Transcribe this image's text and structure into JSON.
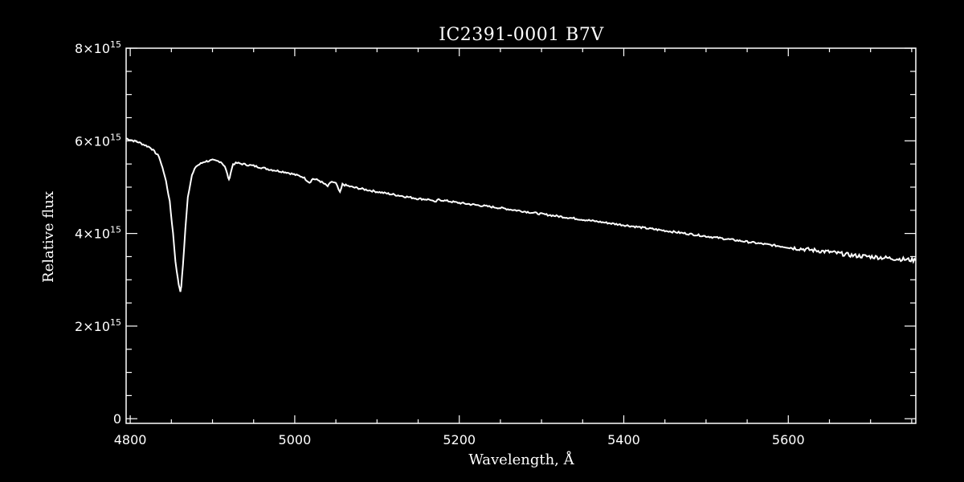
{
  "chart_data": {
    "type": "line",
    "title": "IC2391-0001   B7V",
    "xlabel": "Wavelength, Å",
    "ylabel": "Relative flux",
    "xlim": [
      4795,
      5755
    ],
    "ylim": [
      -100000000000000.0,
      8000000000000000.0
    ],
    "x_ticks": [
      4800,
      5000,
      5200,
      5400,
      5600
    ],
    "x_tick_labels": [
      "4800",
      "5000",
      "5200",
      "5400",
      "5600"
    ],
    "y_ticks": [
      0,
      2000000000000000.0,
      4000000000000000.0,
      6000000000000000.0,
      8000000000000000.0
    ],
    "y_tick_labels": [
      {
        "mantissa": "0",
        "exp": ""
      },
      {
        "mantissa": "2×10",
        "exp": "15"
      },
      {
        "mantissa": "4×10",
        "exp": "15"
      },
      {
        "mantissa": "6×10",
        "exp": "15"
      },
      {
        "mantissa": "8×10",
        "exp": "15"
      }
    ],
    "grid": false,
    "line_color": "#ffffff",
    "background_color": "#000000",
    "series": [
      {
        "x": [
          4795,
          4810,
          4825,
          4835,
          4842,
          4848,
          4852,
          4855,
          4858,
          4860,
          4861,
          4862,
          4864,
          4867,
          4870,
          4875,
          4880,
          4890,
          4900,
          4910,
          4915,
          4918,
          4920,
          4922,
          4925,
          4930,
          4950,
          4970,
          4990,
          5010,
          5018,
          5022,
          5030,
          5040,
          5045,
          5050,
          5055,
          5058,
          5062,
          5070,
          5100,
          5150,
          5165,
          5170,
          5175,
          5200,
          5250,
          5300,
          5350,
          5400,
          5450,
          5500,
          5550,
          5600,
          5650,
          5680,
          5700,
          5720,
          5755
        ],
        "y": [
          6050000000000000.0,
          5970000000000000.0,
          5850000000000000.0,
          5660000000000000.0,
          5250000000000000.0,
          4700000000000000.0,
          4000000000000000.0,
          3400000000000000.0,
          3000000000000000.0,
          2800000000000000.0,
          2750000000000000.0,
          2850000000000000.0,
          3300000000000000.0,
          4100000000000000.0,
          4800000000000000.0,
          5250000000000000.0,
          5450000000000000.0,
          5550000000000000.0,
          5580000000000000.0,
          5550000000000000.0,
          5450000000000000.0,
          5280000000000000.0,
          5150000000000000.0,
          5300000000000000.0,
          5500000000000000.0,
          5520000000000000.0,
          5460000000000000.0,
          5380000000000000.0,
          5320000000000000.0,
          5220000000000000.0,
          5100000000000000.0,
          5180000000000000.0,
          5140000000000000.0,
          5020000000000000.0,
          5120000000000000.0,
          5080000000000000.0,
          4880000000000000.0,
          5060000000000000.0,
          5040000000000000.0,
          5000000000000000.0,
          4900000000000000.0,
          4750000000000000.0,
          4730000000000000.0,
          4670000000000000.0,
          4730000000000000.0,
          4660000000000000.0,
          4550000000000000.0,
          4420000000000000.0,
          4300000000000000.0,
          4180000000000000.0,
          4060000000000000.0,
          3940000000000000.0,
          3820000000000000.0,
          3700000000000000.0,
          3600000000000000.0,
          3520000000000000.0,
          3500000000000000.0,
          3470000000000000.0,
          3420000000000000.0
        ]
      }
    ]
  }
}
